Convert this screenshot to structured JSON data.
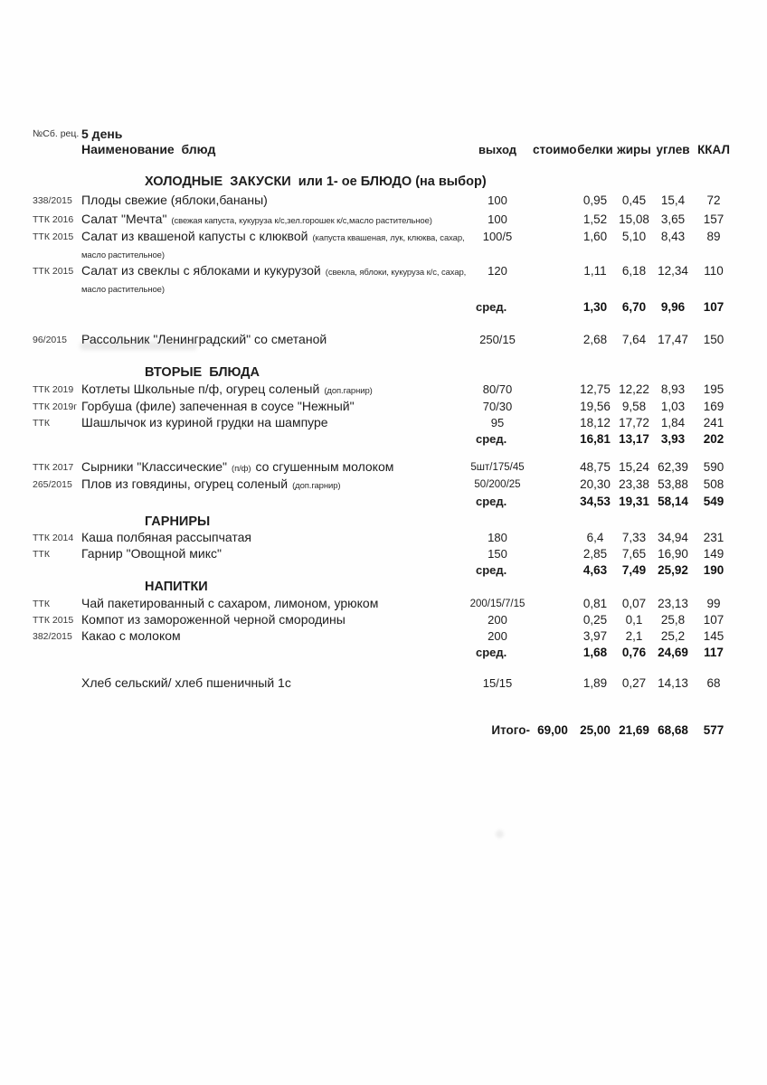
{
  "header": {
    "recipe_label": "№Сб. рец.",
    "day_title": "5 день",
    "name_col_label": "Наименование  блюд",
    "columns": [
      "выход",
      "стоимо",
      "белки",
      "жиры",
      "углев",
      "ККАЛ"
    ]
  },
  "rows": [
    {
      "type": "section",
      "gap": "sect",
      "label": "ХОЛОДНЫЕ  ЗАКУСКИ  или 1- ое БЛЮДО (на выбор)"
    },
    {
      "type": "item",
      "gap": "small",
      "code": "338/2015",
      "name": "Плоды свежие (яблоки,бананы)",
      "detail": "",
      "name2": "",
      "out": "100",
      "cost": "",
      "protein": "0,95",
      "fat": "0,45",
      "carbs": "15,4",
      "kcal": "72"
    },
    {
      "type": "item",
      "gap": "small",
      "code": "ТТК 2016",
      "name": "Салат \"Мечта\"",
      "detail": "(свежая капуста, кукуруза к/с,зел.горошек к/с,масло растительное)",
      "name2": "",
      "out": "100",
      "cost": "",
      "protein": "1,52",
      "fat": "15,08",
      "carbs": "3,65",
      "kcal": "157"
    },
    {
      "type": "item",
      "gap": "none",
      "code": "ТТК 2015",
      "name": "Салат из квашеной капусты с клюквой",
      "detail": "(капуста квашеная, лук, клюква, сахар, масло растительное)",
      "name2": "",
      "out": "100/5",
      "cost": "",
      "protein": "1,60",
      "fat": "5,10",
      "carbs": "8,43",
      "kcal": "89"
    },
    {
      "type": "item",
      "gap": "none",
      "code": "ТТК 2015",
      "name": "Салат из свеклы с яблоками и кукурузой",
      "detail": "(свекла, яблоки, кукуруза к/с, сахар, масло растительное)",
      "name2": "",
      "out": "120",
      "cost": "",
      "protein": "1,11",
      "fat": "6,18",
      "carbs": "12,34",
      "kcal": "110"
    },
    {
      "type": "avg",
      "gap": "tiny",
      "label": "сред.",
      "protein": "1,30",
      "fat": "6,70",
      "carbs": "9,96",
      "kcal": "107"
    },
    {
      "type": "item",
      "gap": "row",
      "code": "96/2015",
      "name": "Рассольник \"Ленинградский\" со сметаной",
      "detail": "",
      "name2": "",
      "out": "250/15",
      "cost": "",
      "protein": "2,68",
      "fat": "7,64",
      "carbs": "17,47",
      "kcal": "150"
    },
    {
      "type": "section",
      "gap": "row",
      "label": "ВТОРЫЕ  БЛЮДА"
    },
    {
      "type": "item",
      "gap": "hair",
      "code": "ТТК 2019",
      "name": "Котлеты Школьные п/ф, огурец соленый",
      "detail": "(доп.гарнир)",
      "name2": "",
      "out": "80/70",
      "cost": "",
      "protein": "12,75",
      "fat": "12,22",
      "carbs": "8,93",
      "kcal": "195"
    },
    {
      "type": "item",
      "gap": "none",
      "code": "ТТК 2019г",
      "name": "Горбуша (филе) запеченная в соусе \"Нежный\"",
      "detail": "",
      "name2": "",
      "out": "70/30",
      "cost": "",
      "protein": "19,56",
      "fat": "9,58",
      "carbs": "1,03",
      "kcal": "169"
    },
    {
      "type": "item",
      "gap": "none",
      "code": "ТТК",
      "name": "Шашлычок из куриной грудки на шампуре",
      "detail": "",
      "name2": "",
      "out": "95",
      "cost": "",
      "protein": "18,12",
      "fat": "17,72",
      "carbs": "1,84",
      "kcal": "241"
    },
    {
      "type": "avg",
      "gap": "none",
      "label": "сред.",
      "protein": "16,81",
      "fat": "13,17",
      "carbs": "3,93",
      "kcal": "202"
    },
    {
      "type": "item",
      "gap": "item",
      "code": "ТТК 2017",
      "name": "Сырники \"Классические\"",
      "detail": "(п/ф)",
      "name2": "со сгушенным молоком",
      "out": "5шт/175/45",
      "cost": "",
      "protein": "48,75",
      "fat": "15,24",
      "carbs": "62,39",
      "kcal": "590"
    },
    {
      "type": "item",
      "gap": "none",
      "code": "265/2015",
      "name": "Плов из говядины, огурец соленый",
      "detail": "(доп.гарнир)",
      "name2": "",
      "out": "50/200/25",
      "cost": "",
      "protein": "20,30",
      "fat": "23,38",
      "carbs": "53,88",
      "kcal": "508"
    },
    {
      "type": "avg",
      "gap": "none",
      "label": "сред.",
      "protein": "34,53",
      "fat": "19,31",
      "carbs": "58,14",
      "kcal": "549"
    },
    {
      "type": "section",
      "gap": "mid",
      "label": "ГАРНИРЫ"
    },
    {
      "type": "item",
      "gap": "none",
      "code": "ТТК 2014",
      "name": "Каша полбяная рассыпчатая",
      "detail": "",
      "name2": "",
      "out": "180",
      "cost": "",
      "protein": "6,4",
      "fat": "7,33",
      "carbs": "34,94",
      "kcal": "231"
    },
    {
      "type": "item",
      "gap": "none",
      "code": "ТТК",
      "name": "Гарнир \"Овощной микс\"",
      "detail": "",
      "name2": "",
      "out": "150",
      "cost": "",
      "protein": "2,85",
      "fat": "7,65",
      "carbs": "16,90",
      "kcal": "149"
    },
    {
      "type": "avg",
      "gap": "none",
      "label": "сред.",
      "protein": "4,63",
      "fat": "7,49",
      "carbs": "25,92",
      "kcal": "190"
    },
    {
      "type": "section",
      "gap": "none",
      "label": "НАПИТКИ"
    },
    {
      "type": "item",
      "gap": "hair",
      "code": "ТТК",
      "name": "Чай пакетированный с сахаром, лимоном, урюком",
      "detail": "",
      "name2": "",
      "out": "200/15/7/15",
      "cost": "",
      "protein": "0,81",
      "fat": "0,07",
      "carbs": "23,13",
      "kcal": "99"
    },
    {
      "type": "item",
      "gap": "none",
      "code": "ТТК 2015",
      "name": "Компот из замороженной черной смородины",
      "detail": "",
      "name2": "",
      "out": "200",
      "cost": "",
      "protein": "0,25",
      "fat": "0,1",
      "carbs": "25,8",
      "kcal": "107"
    },
    {
      "type": "item",
      "gap": "none",
      "code": "382/2015",
      "name": "Какао с молоком",
      "detail": "",
      "name2": "",
      "out": "200",
      "cost": "",
      "protein": "3,97",
      "fat": "2,1",
      "carbs": "25,2",
      "kcal": "145"
    },
    {
      "type": "avg",
      "gap": "none",
      "label": "сред.",
      "protein": "1,68",
      "fat": "0,76",
      "carbs": "24,69",
      "kcal": "117"
    },
    {
      "type": "item",
      "gap": "wide",
      "code": "",
      "name": "Хлеб сельский/ хлеб пшеничный 1с",
      "detail": "",
      "name2": "",
      "out": "15/15",
      "cost": "",
      "protein": "1,89",
      "fat": "0,27",
      "carbs": "14,13",
      "kcal": "68"
    },
    {
      "type": "total",
      "gap": "total",
      "label": "Итого-",
      "cost": "69,00",
      "protein": "25,00",
      "fat": "21,69",
      "carbs": "68,68",
      "kcal": "577"
    }
  ]
}
